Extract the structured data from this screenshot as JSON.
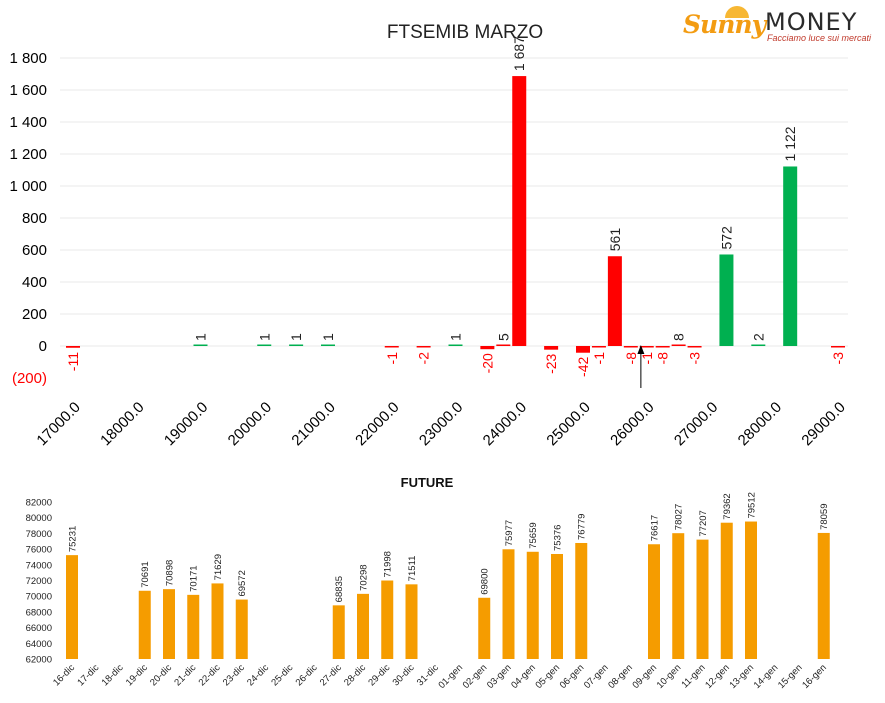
{
  "logo": {
    "name": "Sunny",
    "money": "MONEY",
    "tagline": "Facciamo luce sui mercati"
  },
  "colors": {
    "positive": "#00b050",
    "negative": "#ff0000",
    "future_bar": "#f59c00",
    "axis_text": "#000000",
    "grid": "#eaeaea",
    "negative_tick": "#ff0000"
  },
  "chart_data": [
    {
      "type": "bar",
      "title": "FTSEMIB MARZO",
      "xlabel": "",
      "ylabel": "",
      "ylim": [
        -200,
        1800
      ],
      "yticks": [
        {
          "value": 1800,
          "label": "1 800"
        },
        {
          "value": 1600,
          "label": "1 600"
        },
        {
          "value": 1400,
          "label": "1 400"
        },
        {
          "value": 1200,
          "label": "1 200"
        },
        {
          "value": 1000,
          "label": "1 000"
        },
        {
          "value": 800,
          "label": "800"
        },
        {
          "value": 600,
          "label": "600"
        },
        {
          "value": 400,
          "label": "400"
        },
        {
          "value": 200,
          "label": "200"
        },
        {
          "value": 0,
          "label": "0"
        },
        {
          "value": -200,
          "label": "(200)"
        }
      ],
      "xlim": [
        17000,
        29000
      ],
      "xticks": [
        "17000.0",
        "18000.0",
        "19000.0",
        "20000.0",
        "21000.0",
        "22000.0",
        "23000.0",
        "24000.0",
        "25000.0",
        "26000.0",
        "27000.0",
        "28000.0",
        "29000.0"
      ],
      "grid": true,
      "points": [
        {
          "strike": 17000,
          "value": -11,
          "label": "-11"
        },
        {
          "strike": 19000,
          "value": 1,
          "label": "1"
        },
        {
          "strike": 20000,
          "value": 1,
          "label": "1"
        },
        {
          "strike": 20500,
          "value": 1,
          "label": "1"
        },
        {
          "strike": 21000,
          "value": 1,
          "label": "1"
        },
        {
          "strike": 22000,
          "value": -1,
          "label": "-1"
        },
        {
          "strike": 22500,
          "value": -2,
          "label": "-2"
        },
        {
          "strike": 23000,
          "value": 1,
          "label": "1"
        },
        {
          "strike": 23500,
          "value": -20,
          "label": "-20"
        },
        {
          "strike": 23750,
          "value": 5,
          "label": "5"
        },
        {
          "strike": 24000,
          "value": 1687,
          "label": "1 687"
        },
        {
          "strike": 24500,
          "value": -23,
          "label": "-23"
        },
        {
          "strike": 25000,
          "value": -42,
          "label": "-42"
        },
        {
          "strike": 25250,
          "value": -1,
          "label": "-1"
        },
        {
          "strike": 25500,
          "value": 561,
          "label": "561"
        },
        {
          "strike": 25750,
          "value": -8,
          "label": "-8"
        },
        {
          "strike": 26000,
          "value": -1,
          "label": "-1"
        },
        {
          "strike": 26250,
          "value": -8,
          "label": "-8"
        },
        {
          "strike": 26500,
          "value": 8,
          "label": "8"
        },
        {
          "strike": 26750,
          "value": -3,
          "label": "-3"
        },
        {
          "strike": 27250,
          "value": 572,
          "label": "572"
        },
        {
          "strike": 27750,
          "value": 2,
          "label": "2"
        },
        {
          "strike": 28250,
          "value": 1122,
          "label": "1 122"
        },
        {
          "strike": 29000,
          "value": -3,
          "label": "-3"
        }
      ],
      "marker_strike": 25500
    },
    {
      "type": "bar",
      "title": "FUTURE",
      "xlabel": "",
      "ylabel": "",
      "ylim": [
        62000,
        82000
      ],
      "yticks": [
        "82000",
        "80000",
        "78000",
        "76000",
        "74000",
        "72000",
        "70000",
        "68000",
        "66000",
        "64000",
        "62000"
      ],
      "categories": [
        "16-dic",
        "17-dic",
        "18-dic",
        "19-dic",
        "20-dic",
        "21-dic",
        "22-dic",
        "23-dic",
        "24-dic",
        "25-dic",
        "26-dic",
        "27-dic",
        "28-dic",
        "29-dic",
        "30-dic",
        "31-dic",
        "01-gen",
        "02-gen",
        "03-gen",
        "04-gen",
        "05-gen",
        "06-gen",
        "07-gen",
        "08-gen",
        "09-gen",
        "10-gen",
        "11-gen",
        "12-gen",
        "13-gen",
        "14-gen",
        "15-gen",
        "16-gen"
      ],
      "values": [
        75231,
        null,
        null,
        70691,
        70898,
        70171,
        71629,
        69572,
        null,
        null,
        null,
        68835,
        70298,
        71998,
        71511,
        null,
        null,
        69800,
        75977,
        75659,
        75376,
        76779,
        null,
        null,
        76617,
        78027,
        77207,
        79362,
        79512,
        null,
        null,
        78059
      ],
      "labels": [
        "75231",
        "",
        "",
        "70691",
        "70898",
        "70171",
        "71629",
        "69572",
        "",
        "",
        "",
        "68835",
        "70298",
        "71998",
        "71511",
        "",
        "",
        "69800",
        "75977",
        "75659",
        "75376",
        "76779",
        "",
        "",
        "76617",
        "78027",
        "77207",
        "79362",
        "79512",
        "",
        "",
        "78059"
      ],
      "grid": false
    }
  ]
}
